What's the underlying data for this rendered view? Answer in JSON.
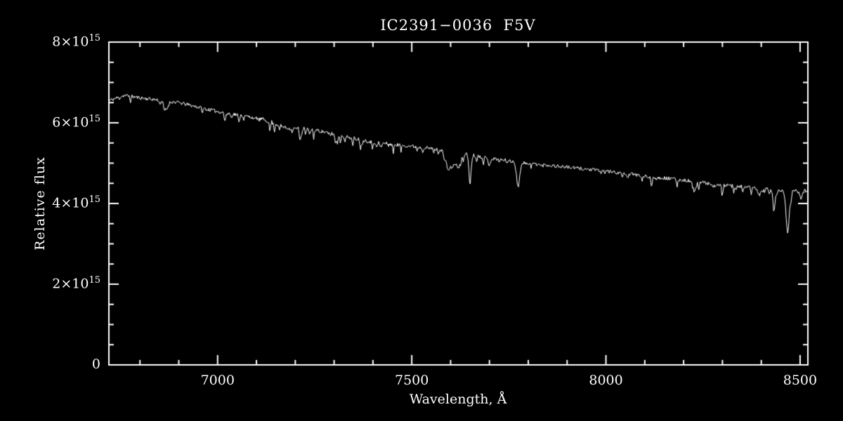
{
  "chart_data": {
    "type": "line",
    "title": "IC2391−0036  F5V",
    "xlabel": "Wavelength, Å",
    "ylabel": "Relative flux",
    "xlim": [
      6720,
      8520
    ],
    "ylim": [
      0,
      8
    ],
    "y_unit": "×10^15",
    "x_ticks": [
      7000,
      7500,
      8000,
      8500
    ],
    "x_tick_labels": [
      "7000",
      "7500",
      "8000",
      "8500"
    ],
    "x_minor": 100,
    "y_ticks": [
      0,
      2,
      4,
      6,
      8
    ],
    "y_tick_labels": [
      "0",
      "2×10^15",
      "4×10^15",
      "6×10^15",
      "8×10^15"
    ],
    "y_minor": 0.5,
    "grid": false,
    "legend": false,
    "background": "#000000",
    "axis_color": "#ffffff",
    "line_color": "#ffffff",
    "continuum": [
      [
        6720,
        6.55
      ],
      [
        6760,
        6.68
      ],
      [
        6800,
        6.62
      ],
      [
        6900,
        6.5
      ],
      [
        7000,
        6.28
      ],
      [
        7100,
        6.12
      ],
      [
        7200,
        5.93
      ],
      [
        7300,
        5.72
      ],
      [
        7400,
        5.52
      ],
      [
        7500,
        5.42
      ],
      [
        7600,
        5.3
      ],
      [
        7700,
        5.12
      ],
      [
        7800,
        5.0
      ],
      [
        7900,
        4.9
      ],
      [
        8000,
        4.8
      ],
      [
        8100,
        4.68
      ],
      [
        8200,
        4.58
      ],
      [
        8300,
        4.45
      ],
      [
        8400,
        4.38
      ],
      [
        8460,
        4.3
      ],
      [
        8520,
        4.32
      ]
    ],
    "features": [
      {
        "center": 6867,
        "depth": 0.22,
        "sigma": 5
      },
      {
        "center": 7180,
        "depth": 0.1,
        "sigma": 25
      },
      {
        "center": 7593,
        "depth": 0.28,
        "sigma": 5
      },
      {
        "center": 7605,
        "depth": 0.35,
        "sigma": 10
      },
      {
        "center": 7621,
        "depth": 0.3,
        "sigma": 4
      },
      {
        "center": 7650,
        "depth": 0.55,
        "sigma": 3
      },
      {
        "center": 7699,
        "depth": 0.15,
        "sigma": 3
      },
      {
        "center": 7774,
        "depth": 0.62,
        "sigma": 4
      },
      {
        "center": 8227,
        "depth": 0.22,
        "sigma": 4
      },
      {
        "center": 8395,
        "depth": 0.18,
        "sigma": 4
      },
      {
        "center": 8434,
        "depth": 0.28,
        "sigma": 4
      },
      {
        "center": 8468,
        "depth": 1.0,
        "sigma": 4
      },
      {
        "center": 8502,
        "depth": 0.2,
        "sigma": 3
      }
    ],
    "noise": {
      "seed": 11,
      "step": 1.8,
      "amplitude": 0.045,
      "dip_probability": 0.06,
      "dip_max": 0.12,
      "dip_regions": [
        {
          "from": 6980,
          "to": 7480,
          "prob": 0.16,
          "max": 0.22
        },
        {
          "from": 7540,
          "to": 7730,
          "prob": 0.14,
          "max": 0.18
        },
        {
          "from": 8080,
          "to": 8520,
          "prob": 0.12,
          "max": 0.2
        }
      ]
    }
  }
}
